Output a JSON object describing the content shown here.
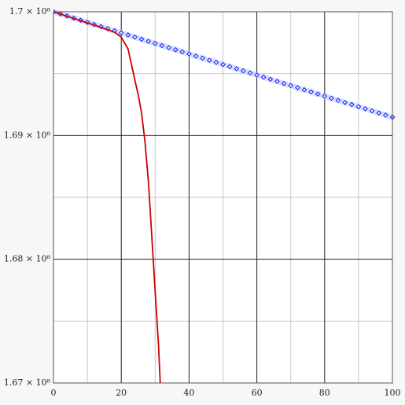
{
  "chart_data": {
    "type": "line",
    "x_ticks_minor": [
      10,
      30,
      50,
      70,
      90
    ],
    "xlim": [
      0,
      100
    ],
    "xticks": [
      0,
      20,
      40,
      60,
      80,
      100
    ],
    "ylim": [
      167000000,
      170000000
    ],
    "yticks": [
      {
        "value": 167000000,
        "label": "1.67 × 10⁸"
      },
      {
        "value": 168000000,
        "label": "1.68 × 10⁸"
      },
      {
        "value": 169000000,
        "label": "1.69 × 10⁸"
      },
      {
        "value": 170000000,
        "label": "1.7 × 10⁸"
      }
    ],
    "yticks_minor": [
      167500000,
      168500000,
      169500000
    ],
    "grid": true,
    "series": [
      {
        "color": "#1a1aff",
        "marker": "diamond",
        "x": [
          0,
          2,
          4,
          6,
          8,
          10,
          12,
          14,
          16,
          18,
          20,
          22,
          24,
          26,
          28,
          30,
          32,
          34,
          36,
          38,
          40,
          42,
          44,
          46,
          48,
          50,
          52,
          54,
          56,
          58,
          60,
          62,
          64,
          66,
          68,
          70,
          72,
          74,
          76,
          78,
          80,
          82,
          84,
          86,
          88,
          90,
          92,
          94,
          96,
          98,
          100
        ],
        "values": [
          170000000,
          169982960,
          169965920,
          169948880,
          169931840,
          169914800,
          169897760,
          169880720,
          169863680,
          169846640,
          169829600,
          169812560,
          169795520,
          169778480,
          169761440,
          169744400,
          169727360,
          169710320,
          169693280,
          169676240,
          169659200,
          169642160,
          169625120,
          169608080,
          169591040,
          169574000,
          169556960,
          169539920,
          169522880,
          169505840,
          169488800,
          169471760,
          169454720,
          169437680,
          169420640,
          169403600,
          169386560,
          169369520,
          169352480,
          169335440,
          169318400,
          169301360,
          169284320,
          169267280,
          169250240,
          169233200,
          169216160,
          169199120,
          169182080,
          169165040,
          169148000
        ]
      },
      {
        "color": "#cc0000",
        "x": [
          0,
          5,
          10,
          15,
          18,
          20,
          22,
          24,
          25,
          26,
          27,
          28,
          29,
          30,
          31,
          31.5
        ],
        "values": [
          170000000,
          169955000,
          169910000,
          169865000,
          169835000,
          169795000,
          169700000,
          169450000,
          169330000,
          169180000,
          168950000,
          168630000,
          168190000,
          167740000,
          167300000,
          167000000
        ]
      }
    ]
  }
}
